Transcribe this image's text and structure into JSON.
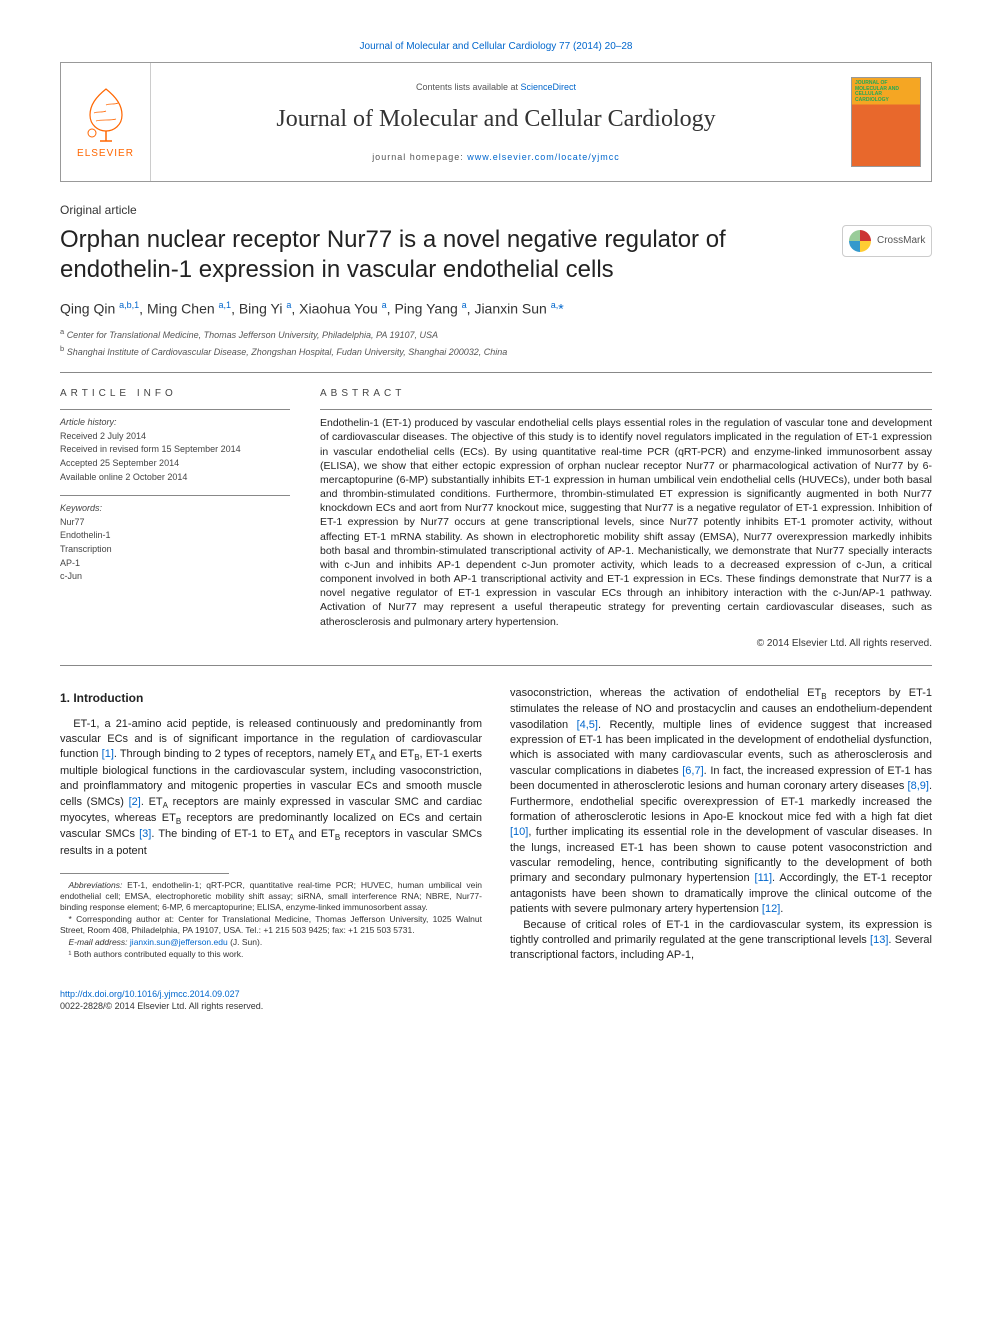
{
  "top_citation": "Journal of Molecular and Cellular Cardiology 77 (2014) 20–28",
  "header": {
    "elsevier": "ELSEVIER",
    "contents_prefix": "Contents lists available at ",
    "contents_link": "ScienceDirect",
    "journal_title": "Journal of Molecular and Cellular Cardiology",
    "homepage_prefix": "journal homepage: ",
    "homepage_link": "www.elsevier.com/locate/yjmcc",
    "cover_label": "JOURNAL OF MOLECULAR AND CELLULAR CARDIOLOGY"
  },
  "article_type": "Original article",
  "title": "Orphan nuclear receptor Nur77 is a novel negative regulator of endothelin-1 expression in vascular endothelial cells",
  "crossmark": "CrossMark",
  "authors_html": "Qing Qin <sup>a,b,1</sup>, Ming Chen <sup>a,1</sup>, Bing Yi <sup>a</sup>, Xiaohua You <sup>a</sup>, Ping Yang <sup>a</sup>, Jianxin Sun <sup>a,</sup><span class='corr'>*</span>",
  "affiliations": {
    "a": "Center for Translational Medicine, Thomas Jefferson University, Philadelphia, PA 19107, USA",
    "b": "Shanghai Institute of Cardiovascular Disease, Zhongshan Hospital, Fudan University, Shanghai 200032, China"
  },
  "article_info": {
    "header": "article info",
    "history_label": "Article history:",
    "received": "Received 2 July 2014",
    "revised": "Received in revised form 15 September 2014",
    "accepted": "Accepted 25 September 2014",
    "online": "Available online 2 October 2014",
    "keywords_label": "Keywords:",
    "keywords": [
      "Nur77",
      "Endothelin-1",
      "Transcription",
      "AP-1",
      "c-Jun"
    ]
  },
  "abstract": {
    "header": "abstract",
    "text": "Endothelin-1 (ET-1) produced by vascular endothelial cells plays essential roles in the regulation of vascular tone and development of cardiovascular diseases. The objective of this study is to identify novel regulators implicated in the regulation of ET-1 expression in vascular endothelial cells (ECs). By using quantitative real-time PCR (qRT-PCR) and enzyme-linked immunosorbent assay (ELISA), we show that either ectopic expression of orphan nuclear receptor Nur77 or pharmacological activation of Nur77 by 6-mercaptopurine (6-MP) substantially inhibits ET-1 expression in human umbilical vein endothelial cells (HUVECs), under both basal and thrombin-stimulated conditions. Furthermore, thrombin-stimulated ET expression is significantly augmented in both Nur77 knockdown ECs and aort from Nur77 knockout mice, suggesting that Nur77 is a negative regulator of ET-1 expression. Inhibition of ET-1 expression by Nur77 occurs at gene transcriptional levels, since Nur77 potently inhibits ET-1 promoter activity, without affecting ET-1 mRNA stability. As shown in electrophoretic mobility shift assay (EMSA), Nur77 overexpression markedly inhibits both basal and thrombin-stimulated transcriptional activity of AP-1. Mechanistically, we demonstrate that Nur77 specially interacts with c-Jun and inhibits AP-1 dependent c-Jun promoter activity, which leads to a decreased expression of c-Jun, a critical component involved in both AP-1 transcriptional activity and ET-1 expression in ECs. These findings demonstrate that Nur77 is a novel negative regulator of ET-1 expression in vascular ECs through an inhibitory interaction with the c-Jun/AP-1 pathway. Activation of Nur77 may represent a useful therapeutic strategy for preventing certain cardiovascular diseases, such as atherosclerosis and pulmonary artery hypertension.",
    "copyright": "© 2014 Elsevier Ltd. All rights reserved."
  },
  "body": {
    "section_heading": "1. Introduction",
    "p1_a": "ET-1, a 21-amino acid peptide, is released continuously and predominantly from vascular ECs and is of significant importance in the regulation of cardiovascular function ",
    "ref1": "[1]",
    "p1_b": ". Through binding to 2 types of receptors, namely ET",
    "subA1": "A",
    "p1_c": " and ET",
    "subB1": "B",
    "p1_d": ", ET-1 exerts multiple biological functions in the cardiovascular system, including vasoconstriction, and proinflammatory and mitogenic properties in vascular ECs and smooth muscle cells (SMCs) ",
    "ref2": "[2]",
    "p1_e": ". ET",
    "subA2": "A",
    "p1_f": " receptors are mainly expressed in vascular SMC and cardiac myocytes, whereas ET",
    "subB2": "B",
    "p1_g": " receptors are predominantly localized on ECs and certain vascular SMCs ",
    "ref3": "[3]",
    "p1_h": ". The binding of ET-1 to ET",
    "subA3": "A",
    "p1_i": " and ET",
    "subB3": "B",
    "p1_j": " receptors in vascular SMCs results in a potent",
    "p2_a": "vasoconstriction, whereas the activation of endothelial ET",
    "subB4": "B",
    "p2_b": " receptors by ET-1 stimulates the release of NO and prostacyclin and causes an endothelium-dependent vasodilation ",
    "ref45": "[4,5]",
    "p2_c": ". Recently, multiple lines of evidence suggest that increased expression of ET-1 has been implicated in the development of endothelial dysfunction, which is associated with many cardiovascular events, such as atherosclerosis and vascular complications in diabetes ",
    "ref67": "[6,7]",
    "p2_d": ". In fact, the increased expression of ET-1 has been documented in atherosclerotic lesions and human coronary artery diseases ",
    "ref89": "[8,9]",
    "p2_e": ". Furthermore, endothelial specific overexpression of ET-1 markedly increased the formation of atherosclerotic lesions in Apo-E knockout mice fed with a high fat diet ",
    "ref10": "[10]",
    "p2_f": ", further implicating its essential role in the development of vascular diseases. In the lungs, increased ET-1 has been shown to cause potent vasoconstriction and vascular remodeling, hence, contributing significantly to the development of both primary and secondary pulmonary hypertension ",
    "ref11": "[11]",
    "p2_g": ". Accordingly, the ET-1 receptor antagonists have been shown to dramatically improve the clinical outcome of the patients with severe pulmonary artery hypertension ",
    "ref12": "[12]",
    "p2_h": ".",
    "p3_a": "Because of critical roles of ET-1 in the cardiovascular system, its expression is tightly controlled and primarily regulated at the gene transcriptional levels ",
    "ref13": "[13]",
    "p3_b": ". Several transcriptional factors, including AP-1,"
  },
  "footnotes": {
    "abbr_label": "Abbreviations:",
    "abbr": " ET-1, endothelin-1; qRT-PCR, quantitative real-time PCR; HUVEC, human umbilical vein endothelial cell; EMSA, electrophoretic mobility shift assay; siRNA, small interference RNA; NBRE, Nur77-binding response element; 6-MP, 6 mercaptopurine; ELISA, enzyme-linked immunosorbent assay.",
    "corr": "* Corresponding author at: Center for Translational Medicine, Thomas Jefferson University, 1025 Walnut Street, Room 408, Philadelphia, PA 19107, USA. Tel.: +1 215 503 9425; fax: +1 215 503 5731.",
    "email_label": "E-mail address: ",
    "email": "jianxin.sun@jefferson.edu",
    "email_suffix": " (J. Sun).",
    "equal": "¹ Both authors contributed equally to this work."
  },
  "bottom": {
    "doi": "http://dx.doi.org/10.1016/j.yjmcc.2014.09.027",
    "issn_line": "0022-2828/© 2014 Elsevier Ltd. All rights reserved."
  },
  "colors": {
    "link": "#0066cc",
    "elsevier_orange": "#ff6600",
    "rule": "#888888",
    "text": "#222222"
  }
}
